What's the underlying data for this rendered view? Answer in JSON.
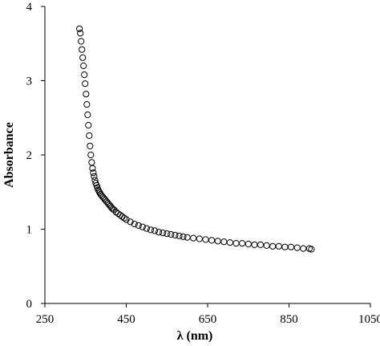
{
  "chart_data": {
    "type": "scatter",
    "title": "",
    "xlabel": "λ (nm)",
    "ylabel": "Absorbance",
    "xlim": [
      250,
      1050
    ],
    "ylim": [
      0,
      4
    ],
    "xticks": [
      250,
      450,
      650,
      850,
      1050
    ],
    "yticks": [
      0,
      1,
      2,
      3,
      4
    ],
    "xtick_labels": [
      "250",
      "450",
      "650",
      "850",
      "1050"
    ],
    "ytick_labels": [
      "0",
      "1",
      "2",
      "3",
      "4"
    ],
    "grid": false,
    "legend": "none",
    "marker": "open-circle",
    "marker_color": "#000000",
    "series": [
      {
        "x": [
          335,
          337,
          339,
          341,
          343,
          345,
          347,
          349,
          351,
          353,
          355,
          357,
          359,
          361,
          363,
          365,
          367,
          369,
          371,
          373,
          375,
          377,
          379,
          381,
          383,
          385,
          387,
          390,
          393,
          396,
          399,
          402,
          405,
          408,
          411,
          414,
          417,
          420,
          425,
          430,
          435,
          440,
          445,
          450,
          460,
          470,
          480,
          490,
          500,
          510,
          520,
          530,
          540,
          550,
          560,
          570,
          580,
          590,
          600,
          615,
          630,
          645,
          660,
          675,
          690,
          705,
          720,
          735,
          750,
          765,
          780,
          795,
          810,
          825,
          840,
          855,
          870,
          885,
          900,
          905
        ],
        "y": [
          3.7,
          3.64,
          3.53,
          3.42,
          3.31,
          3.2,
          3.08,
          2.96,
          2.82,
          2.68,
          2.54,
          2.4,
          2.26,
          2.12,
          2.0,
          1.9,
          1.82,
          1.76,
          1.71,
          1.66,
          1.62,
          1.59,
          1.56,
          1.53,
          1.51,
          1.49,
          1.47,
          1.45,
          1.43,
          1.41,
          1.39,
          1.37,
          1.35,
          1.33,
          1.31,
          1.29,
          1.27,
          1.26,
          1.23,
          1.21,
          1.19,
          1.17,
          1.15,
          1.13,
          1.1,
          1.07,
          1.05,
          1.03,
          1.01,
          0.99,
          0.98,
          0.96,
          0.95,
          0.94,
          0.93,
          0.92,
          0.91,
          0.9,
          0.89,
          0.88,
          0.87,
          0.86,
          0.85,
          0.84,
          0.83,
          0.82,
          0.81,
          0.81,
          0.8,
          0.79,
          0.79,
          0.78,
          0.77,
          0.77,
          0.76,
          0.76,
          0.75,
          0.74,
          0.74,
          0.73
        ]
      }
    ]
  }
}
